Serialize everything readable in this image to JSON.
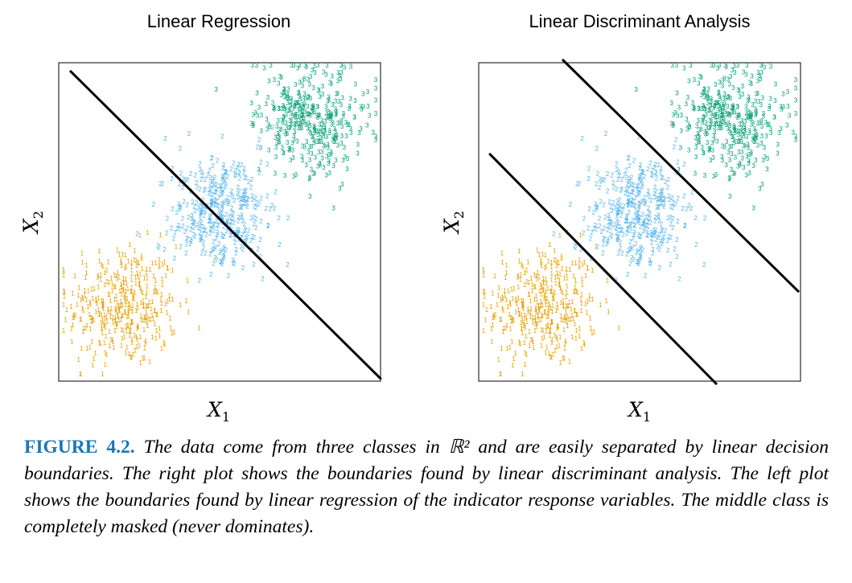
{
  "chart_data": [
    {
      "type": "scatter",
      "title": "Linear Regression",
      "xlabel": "X1",
      "ylabel": "X2",
      "xlim": [
        0,
        10
      ],
      "ylim": [
        0,
        10
      ],
      "series": [
        {
          "name": "1",
          "marker": "1",
          "color": "#e69f00",
          "center": [
            2,
            2.3
          ],
          "spread": [
            0.85,
            0.95
          ],
          "count": 380
        },
        {
          "name": "2",
          "marker": "2",
          "color": "#56b4e9",
          "center": [
            5,
            5.2
          ],
          "spread": [
            0.8,
            0.9
          ],
          "count": 380
        },
        {
          "name": "3",
          "marker": "3",
          "color": "#009e73",
          "center": [
            7.8,
            8.1
          ],
          "spread": [
            0.85,
            0.95
          ],
          "count": 380
        }
      ],
      "boundaries": [
        {
          "x": [
            0.35,
            10.02
          ],
          "y": [
            9.75,
            0.06
          ]
        }
      ]
    },
    {
      "type": "scatter",
      "title": "Linear Discriminant Analysis",
      "xlabel": "X1",
      "ylabel": "X2",
      "xlim": [
        0,
        10
      ],
      "ylim": [
        0,
        10
      ],
      "series": [
        {
          "name": "1",
          "marker": "1",
          "color": "#e69f00",
          "center": [
            2,
            2.3
          ],
          "spread": [
            0.85,
            0.95
          ],
          "count": 380
        },
        {
          "name": "2",
          "marker": "2",
          "color": "#56b4e9",
          "center": [
            4.9,
            5.2
          ],
          "spread": [
            0.8,
            0.9
          ],
          "count": 380
        },
        {
          "name": "3",
          "marker": "3",
          "color": "#009e73",
          "center": [
            7.8,
            8.1
          ],
          "spread": [
            0.85,
            0.95
          ],
          "count": 380
        }
      ],
      "boundaries": [
        {
          "x": [
            0.33,
            7.4
          ],
          "y": [
            7.15,
            -0.1
          ]
        },
        {
          "x": [
            2.6,
            9.95
          ],
          "y": [
            10.1,
            2.8
          ]
        }
      ]
    }
  ],
  "caption": {
    "label": "FIGURE 4.2.",
    "text": "The data come from three classes in ℝ² and are easily separated by linear decision boundaries. The right plot shows the boundaries found by linear discriminant analysis. The left plot shows the boundaries found by linear regression of the indicator response variables. The middle class is completely masked (never dominates)."
  }
}
